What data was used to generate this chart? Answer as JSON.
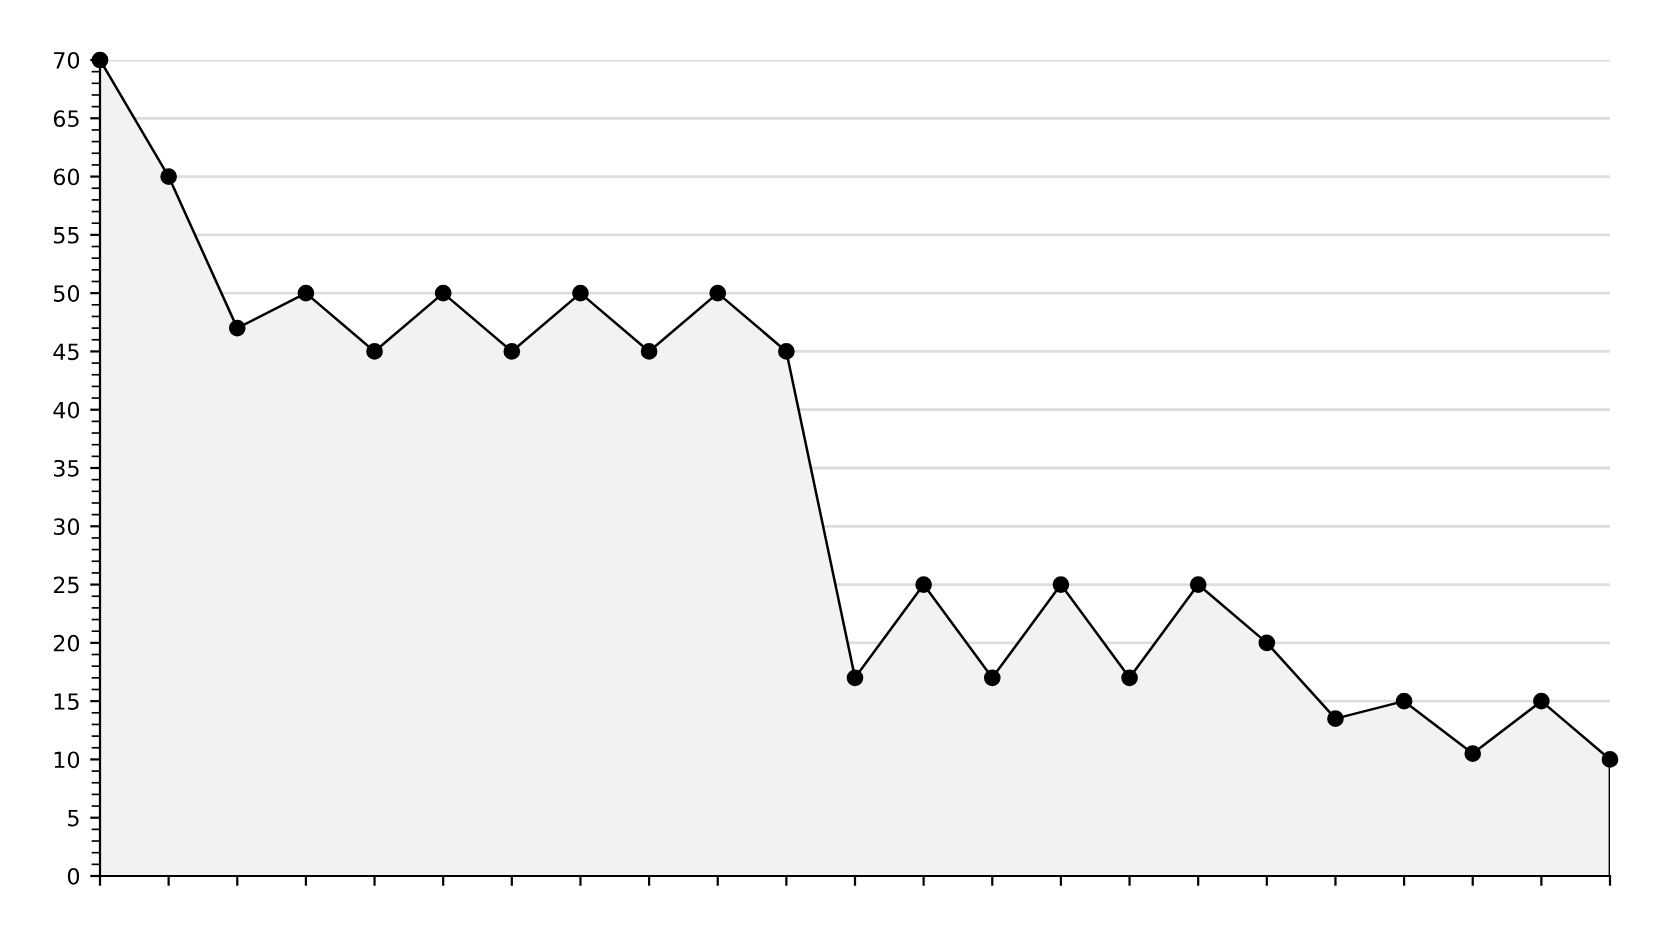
{
  "chart_data": {
    "type": "area",
    "categories": [
      null,
      null,
      null,
      null,
      null,
      null,
      null,
      null,
      null,
      null,
      null,
      null,
      null,
      null,
      null,
      null,
      null,
      null,
      null,
      null,
      null,
      null,
      null
    ],
    "series": [
      {
        "color": "#000000",
        "values": [
          70,
          60,
          47,
          50,
          45,
          50,
          45,
          50,
          45,
          50,
          45,
          17,
          25,
          17,
          25,
          17,
          25,
          20,
          13.5,
          15,
          10.5,
          15,
          10
        ]
      }
    ],
    "ylim": [
      0,
      70
    ],
    "yticks": [
      0,
      5,
      10,
      15,
      20,
      25,
      30,
      35,
      40,
      45,
      50,
      55,
      60,
      65,
      70
    ],
    "grid": "y",
    "marker": "circle",
    "line_style": "solid"
  }
}
